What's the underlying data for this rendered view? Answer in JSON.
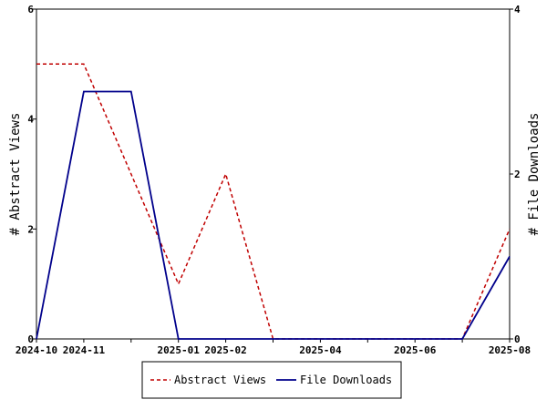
{
  "chart_data": {
    "type": "line",
    "x_dates": [
      "2024-10",
      "2024-11",
      "2024-12",
      "2025-01",
      "2025-02",
      "2025-03",
      "2025-04",
      "2025-05",
      "2025-06",
      "2025-07",
      "2025-08"
    ],
    "x_tick_labels": [
      "2024-10",
      "2024-11",
      "",
      "2025-01",
      "2025-02",
      "",
      "2025-04",
      "",
      "2025-06",
      "",
      "2025-08"
    ],
    "y_left": {
      "label": "# Abstract Views",
      "range": [
        0,
        6
      ],
      "ticks": [
        0,
        2,
        4,
        6
      ]
    },
    "y_right": {
      "label": "# File Downloads",
      "range": [
        0,
        4
      ],
      "ticks": [
        0,
        2,
        4
      ]
    },
    "series": [
      {
        "name": "Abstract Views",
        "axis": "left",
        "style": "dashed",
        "color": "#c00000",
        "values": [
          5,
          5,
          3,
          1,
          3,
          0,
          0,
          0,
          0,
          0,
          2
        ]
      },
      {
        "name": "File Downloads",
        "axis": "right",
        "style": "solid",
        "color": "#00008b",
        "values": [
          0,
          3,
          3,
          0,
          0,
          0,
          0,
          0,
          0,
          0,
          1
        ]
      }
    ],
    "grid": false,
    "legend_position": "bottom"
  }
}
